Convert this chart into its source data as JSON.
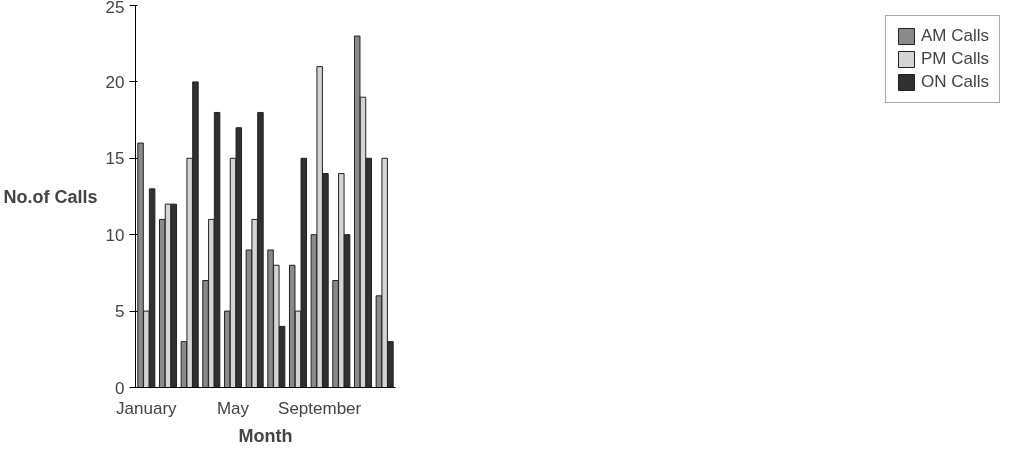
{
  "chart_data": {
    "type": "bar",
    "xlabel": "Month",
    "ylabel": "No.of Calls",
    "categories": [
      "January",
      null,
      null,
      null,
      "May",
      null,
      null,
      null,
      "September",
      null,
      null,
      null
    ],
    "series": [
      {
        "name": "AM Calls",
        "color": "#8a8a8a",
        "values": [
          16,
          11,
          3,
          7,
          5,
          9,
          9,
          8,
          10,
          7,
          23,
          6
        ]
      },
      {
        "name": "PM Calls",
        "color": "#d4d4d4",
        "values": [
          5,
          12,
          15,
          11,
          15,
          11,
          8,
          5,
          21,
          14,
          19,
          15
        ]
      },
      {
        "name": "ON Calls",
        "color": "#303030",
        "values": [
          13,
          12,
          20,
          18,
          17,
          18,
          4,
          15,
          14,
          10,
          15,
          3
        ]
      }
    ],
    "ylim": [
      0,
      25
    ],
    "yticks": [
      0,
      5,
      10,
      15,
      20,
      25
    ],
    "grid": false,
    "legend": "right"
  }
}
